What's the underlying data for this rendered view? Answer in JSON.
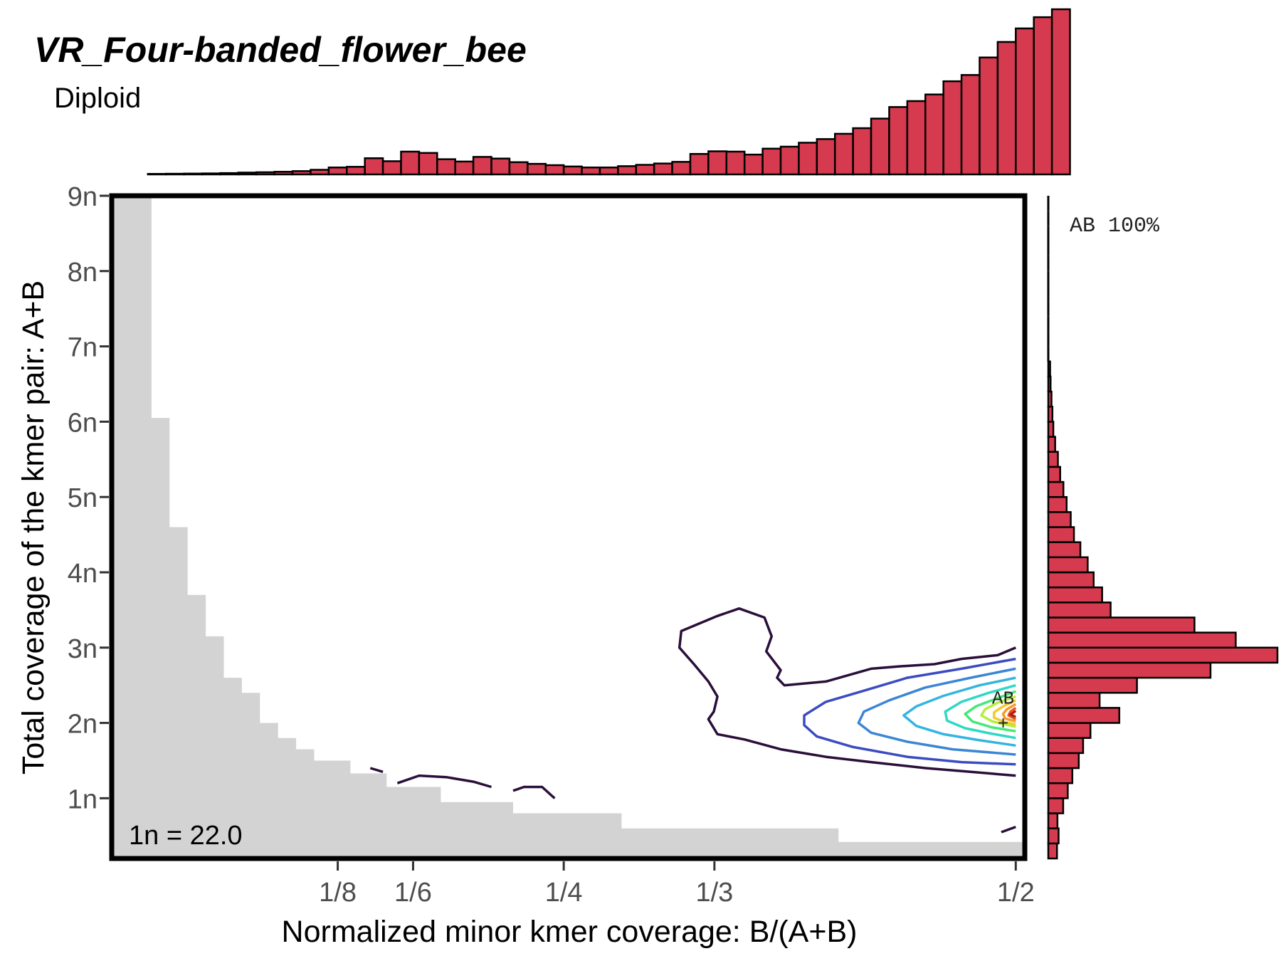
{
  "title": "VR_Four-banded_flower_bee",
  "subtitle": "Diploid",
  "colors": {
    "bar_fill": "#D63A4E",
    "bar_stroke": "#000000",
    "shade": "#D3D3D3",
    "frame": "#000000",
    "tick_text": "#4D4D4D",
    "contour_outer": "#2A0F3A"
  },
  "chart_data": {
    "type": "heatmap",
    "xlabel": "Normalized minor kmer coverage: B/(A+B)",
    "ylabel": "Total coverage of the kmer pair: A+B",
    "x_ticks": [
      {
        "label": "1/8",
        "value": 0.125
      },
      {
        "label": "1/6",
        "value": 0.16667
      },
      {
        "label": "1/4",
        "value": 0.25
      },
      {
        "label": "1/3",
        "value": 0.33333
      },
      {
        "label": "1/2",
        "value": 0.5
      }
    ],
    "y_ticks": [
      {
        "label": "1n",
        "value": 1
      },
      {
        "label": "2n",
        "value": 2
      },
      {
        "label": "3n",
        "value": 3
      },
      {
        "label": "4n",
        "value": 4
      },
      {
        "label": "5n",
        "value": 5
      },
      {
        "label": "6n",
        "value": 6
      },
      {
        "label": "7n",
        "value": 7
      },
      {
        "label": "8n",
        "value": 8
      },
      {
        "label": "9n",
        "value": 9
      }
    ],
    "xlim": [
      0.0,
      0.505
    ],
    "ylim": [
      0.2,
      9.0
    ],
    "annotation": "1n = 22.0",
    "peaks": [
      {
        "label": "AB",
        "x": 0.493,
        "y": 2.05,
        "percent_label": "AB 100%"
      }
    ],
    "excluded_region": [
      [
        0.0,
        9.0
      ],
      [
        0.022,
        9.0
      ],
      [
        0.022,
        6.05
      ],
      [
        0.032,
        6.05
      ],
      [
        0.032,
        4.6
      ],
      [
        0.042,
        4.6
      ],
      [
        0.042,
        3.7
      ],
      [
        0.052,
        3.7
      ],
      [
        0.052,
        3.15
      ],
      [
        0.062,
        3.15
      ],
      [
        0.062,
        2.6
      ],
      [
        0.072,
        2.6
      ],
      [
        0.072,
        2.4
      ],
      [
        0.082,
        2.4
      ],
      [
        0.082,
        2.0
      ],
      [
        0.092,
        2.0
      ],
      [
        0.092,
        1.8
      ],
      [
        0.102,
        1.8
      ],
      [
        0.102,
        1.65
      ],
      [
        0.112,
        1.65
      ],
      [
        0.112,
        1.5
      ],
      [
        0.132,
        1.5
      ],
      [
        0.132,
        1.33
      ],
      [
        0.152,
        1.33
      ],
      [
        0.152,
        1.15
      ],
      [
        0.182,
        1.15
      ],
      [
        0.182,
        0.95
      ],
      [
        0.222,
        0.95
      ],
      [
        0.222,
        0.8
      ],
      [
        0.282,
        0.8
      ],
      [
        0.282,
        0.6
      ],
      [
        0.402,
        0.6
      ],
      [
        0.402,
        0.42
      ],
      [
        0.505,
        0.42
      ],
      [
        0.505,
        0.2
      ],
      [
        0.0,
        0.2
      ]
    ],
    "contours": [
      {
        "color": "#2A0F3A",
        "closed": false,
        "points": [
          [
            0.5,
            3.0
          ],
          [
            0.49,
            2.9
          ],
          [
            0.47,
            2.85
          ],
          [
            0.455,
            2.78
          ],
          [
            0.435,
            2.75
          ],
          [
            0.42,
            2.72
          ],
          [
            0.395,
            2.55
          ],
          [
            0.372,
            2.5
          ],
          [
            0.368,
            2.6
          ],
          [
            0.37,
            2.7
          ],
          [
            0.362,
            2.95
          ],
          [
            0.365,
            3.15
          ],
          [
            0.361,
            3.4
          ],
          [
            0.347,
            3.52
          ],
          [
            0.335,
            3.42
          ],
          [
            0.315,
            3.22
          ],
          [
            0.314,
            3.0
          ],
          [
            0.322,
            2.78
          ],
          [
            0.33,
            2.55
          ],
          [
            0.335,
            2.35
          ],
          [
            0.333,
            2.15
          ],
          [
            0.33,
            2.05
          ],
          [
            0.335,
            1.85
          ],
          [
            0.35,
            1.78
          ],
          [
            0.37,
            1.65
          ],
          [
            0.395,
            1.55
          ],
          [
            0.42,
            1.48
          ],
          [
            0.45,
            1.4
          ],
          [
            0.475,
            1.35
          ],
          [
            0.5,
            1.3
          ]
        ]
      },
      {
        "color": "#2A0F3A",
        "closed": false,
        "points": [
          [
            0.143,
            1.4
          ],
          [
            0.15,
            1.35
          ]
        ]
      },
      {
        "color": "#2A0F3A",
        "closed": false,
        "points": [
          [
            0.158,
            1.2
          ],
          [
            0.17,
            1.3
          ],
          [
            0.185,
            1.28
          ],
          [
            0.2,
            1.22
          ],
          [
            0.21,
            1.15
          ]
        ]
      },
      {
        "color": "#2A0F3A",
        "closed": false,
        "points": [
          [
            0.222,
            1.1
          ],
          [
            0.228,
            1.15
          ],
          [
            0.238,
            1.15
          ],
          [
            0.245,
            1.0
          ]
        ]
      },
      {
        "color": "#2A0F3A",
        "closed": false,
        "points": [
          [
            0.492,
            0.55
          ],
          [
            0.5,
            0.62
          ]
        ]
      },
      {
        "color": "#3B4CC0",
        "closed": false,
        "points": [
          [
            0.5,
            2.85
          ],
          [
            0.47,
            2.72
          ],
          [
            0.44,
            2.6
          ],
          [
            0.415,
            2.42
          ],
          [
            0.395,
            2.28
          ],
          [
            0.383,
            2.1
          ],
          [
            0.383,
            1.97
          ],
          [
            0.39,
            1.82
          ],
          [
            0.41,
            1.68
          ],
          [
            0.44,
            1.55
          ],
          [
            0.47,
            1.48
          ],
          [
            0.5,
            1.45
          ]
        ]
      },
      {
        "color": "#3B86D4",
        "closed": false,
        "points": [
          [
            0.5,
            2.72
          ],
          [
            0.475,
            2.6
          ],
          [
            0.45,
            2.47
          ],
          [
            0.43,
            2.3
          ],
          [
            0.416,
            2.15
          ],
          [
            0.413,
            2.0
          ],
          [
            0.42,
            1.87
          ],
          [
            0.44,
            1.75
          ],
          [
            0.465,
            1.65
          ],
          [
            0.5,
            1.58
          ]
        ]
      },
      {
        "color": "#33B5E0",
        "closed": false,
        "points": [
          [
            0.5,
            2.6
          ],
          [
            0.48,
            2.5
          ],
          [
            0.46,
            2.36
          ],
          [
            0.445,
            2.22
          ],
          [
            0.438,
            2.1
          ],
          [
            0.445,
            1.96
          ],
          [
            0.46,
            1.85
          ],
          [
            0.48,
            1.77
          ],
          [
            0.5,
            1.7
          ]
        ]
      },
      {
        "color": "#2ED9C4",
        "closed": false,
        "points": [
          [
            0.5,
            2.5
          ],
          [
            0.485,
            2.4
          ],
          [
            0.47,
            2.28
          ],
          [
            0.461,
            2.15
          ],
          [
            0.462,
            2.03
          ],
          [
            0.472,
            1.93
          ],
          [
            0.486,
            1.86
          ],
          [
            0.5,
            1.8
          ]
        ]
      },
      {
        "color": "#45E878",
        "closed": false,
        "points": [
          [
            0.5,
            2.42
          ],
          [
            0.49,
            2.33
          ],
          [
            0.478,
            2.22
          ],
          [
            0.472,
            2.12
          ],
          [
            0.476,
            2.02
          ],
          [
            0.487,
            1.94
          ],
          [
            0.5,
            1.89
          ]
        ]
      },
      {
        "color": "#B4EE3A",
        "closed": false,
        "points": [
          [
            0.5,
            2.35
          ],
          [
            0.49,
            2.27
          ],
          [
            0.483,
            2.18
          ],
          [
            0.481,
            2.1
          ],
          [
            0.487,
            2.02
          ],
          [
            0.5,
            1.95
          ]
        ]
      },
      {
        "color": "#F2CB2B",
        "closed": false,
        "points": [
          [
            0.5,
            2.3
          ],
          [
            0.493,
            2.22
          ],
          [
            0.488,
            2.14
          ],
          [
            0.488,
            2.07
          ],
          [
            0.494,
            2.01
          ],
          [
            0.5,
            1.98
          ]
        ]
      },
      {
        "color": "#F79A2A",
        "closed": false,
        "points": [
          [
            0.5,
            2.25
          ],
          [
            0.495,
            2.18
          ],
          [
            0.493,
            2.12
          ],
          [
            0.494,
            2.06
          ],
          [
            0.5,
            2.02
          ]
        ]
      },
      {
        "color": "#E8581F",
        "closed": false,
        "points": [
          [
            0.5,
            2.2
          ],
          [
            0.497,
            2.15
          ],
          [
            0.496,
            2.1
          ],
          [
            0.5,
            2.05
          ]
        ]
      },
      {
        "color": "#B01E14",
        "closed": false,
        "points": [
          [
            0.5,
            2.16
          ],
          [
            0.497,
            2.11
          ],
          [
            0.5,
            2.08
          ]
        ]
      }
    ],
    "top_histogram": {
      "x_start": 0.0,
      "x_step": 0.01,
      "counts": [
        0,
        0,
        0.3,
        0.4,
        0.5,
        0.6,
        0.8,
        1.1,
        1.3,
        1.6,
        2.0,
        2.8,
        4.2,
        4.6,
        9.8,
        8.0,
        13.8,
        13.0,
        9.2,
        7.8,
        10.6,
        9.6,
        7.4,
        6.4,
        5.6,
        4.8,
        4.2,
        4.2,
        5.0,
        5.8,
        6.6,
        7.6,
        12.4,
        14.0,
        13.8,
        12.0,
        15.6,
        16.8,
        19.2,
        21.4,
        24.6,
        28.0,
        33.8,
        40.8,
        44.4,
        48.4,
        56.4,
        60.2,
        70.8,
        80.2,
        88.4,
        95.2,
        100
      ],
      "max": 100
    },
    "right_histogram": {
      "y_start": 0.2,
      "y_step": 0.2,
      "counts": [
        3.8,
        4.5,
        4.0,
        6.5,
        8.5,
        10.5,
        13.3,
        15.2,
        18.4,
        31.0,
        22.4,
        38.7,
        70.8,
        100.0,
        81.8,
        63.8,
        27.2,
        23.5,
        19.8,
        17.2,
        14.0,
        11.2,
        9.8,
        8.0,
        6.6,
        5.2,
        4.2,
        3.0,
        2.2,
        1.8,
        1.4,
        1.0,
        0.8,
        0.6,
        0.5,
        0.4,
        0.3,
        0.3,
        0.3,
        0.2,
        0.2,
        0.2,
        0.2,
        0.2
      ],
      "max": 100
    }
  }
}
